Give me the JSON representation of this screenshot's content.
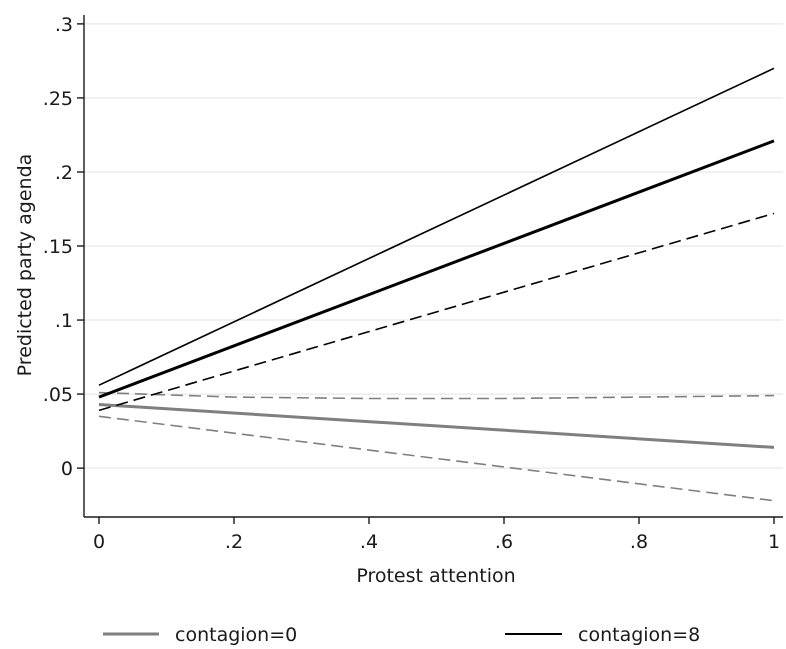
{
  "chart_data": {
    "type": "line",
    "xlabel": "Protest attention",
    "ylabel": "Predicted party agenda",
    "xlim": [
      0,
      1
    ],
    "ylim": [
      -0.033,
      0.306
    ],
    "x_ticks": [
      0,
      0.2,
      0.4,
      0.6,
      0.8,
      1
    ],
    "x_tick_labels": [
      "0",
      ".2",
      ".4",
      ".6",
      ".8",
      "1"
    ],
    "y_ticks": [
      0,
      0.05,
      0.1,
      0.15,
      0.2,
      0.25,
      0.3
    ],
    "y_tick_labels": [
      "0",
      ".05",
      ".1",
      ".15",
      ".2",
      ".25",
      ".3"
    ],
    "grid": "horizontal",
    "legend_position": "bottom",
    "x": [
      0,
      1
    ],
    "series": [
      {
        "name": "contagion=0",
        "role": "estimate",
        "color": "#7f7f7f",
        "dash": "solid",
        "values": [
          0.043,
          0.014
        ]
      },
      {
        "role": "upper-ci",
        "color": "#7f7f7f",
        "dash": "dashed",
        "values": [
          0.051,
          0.049
        ]
      },
      {
        "role": "lower-ci",
        "color": "#7f7f7f",
        "dash": "dashed",
        "values": [
          0.035,
          -0.022
        ]
      },
      {
        "name": "contagion=8",
        "role": "estimate",
        "color": "#000000",
        "dash": "solid",
        "values": [
          0.048,
          0.221
        ]
      },
      {
        "role": "upper-ci",
        "color": "#000000",
        "dash": "solid",
        "values": [
          0.056,
          0.27
        ]
      },
      {
        "role": "lower-ci",
        "color": "#000000",
        "dash": "dashed",
        "values": [
          0.039,
          0.172
        ]
      }
    ],
    "curves": [
      {
        "of": 1,
        "x": [
          0,
          0.2,
          0.4,
          0.6,
          0.8,
          1
        ],
        "values": [
          0.051,
          0.048,
          0.047,
          0.047,
          0.048,
          0.049
        ]
      }
    ],
    "legend": [
      {
        "label": "contagion=0",
        "color": "#7f7f7f"
      },
      {
        "label": "contagion=8",
        "color": "#000000"
      }
    ]
  }
}
